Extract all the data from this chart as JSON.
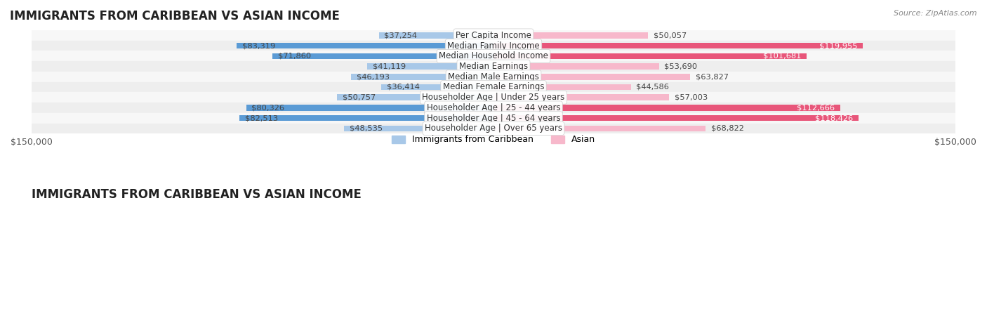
{
  "title": "IMMIGRANTS FROM CARIBBEAN VS ASIAN INCOME",
  "source": "Source: ZipAtlas.com",
  "categories": [
    "Per Capita Income",
    "Median Family Income",
    "Median Household Income",
    "Median Earnings",
    "Median Male Earnings",
    "Median Female Earnings",
    "Householder Age | Under 25 years",
    "Householder Age | 25 - 44 years",
    "Householder Age | 45 - 64 years",
    "Householder Age | Over 65 years"
  ],
  "caribbean_values": [
    37254,
    83319,
    71860,
    41119,
    46193,
    36414,
    50757,
    80326,
    82513,
    48535
  ],
  "asian_values": [
    50057,
    119955,
    101681,
    53690,
    63827,
    44586,
    57003,
    112666,
    118426,
    68822
  ],
  "caribbean_color_light": "#a8c8e8",
  "caribbean_color_dark": "#5b9bd5",
  "asian_color_light": "#f7b8cb",
  "asian_color_dark": "#e8567a",
  "max_value": 150000,
  "bar_height": 0.58,
  "row_bg_light": "#f7f7f7",
  "row_bg_dark": "#eeeeee",
  "label_fontsize": 8.5,
  "title_fontsize": 12,
  "value_fontsize": 8.2,
  "legend_fontsize": 9,
  "xlabel_left": "$150,000",
  "xlabel_right": "$150,000",
  "asian_inside_threshold": 80000,
  "carib_inside_threshold": 60000
}
